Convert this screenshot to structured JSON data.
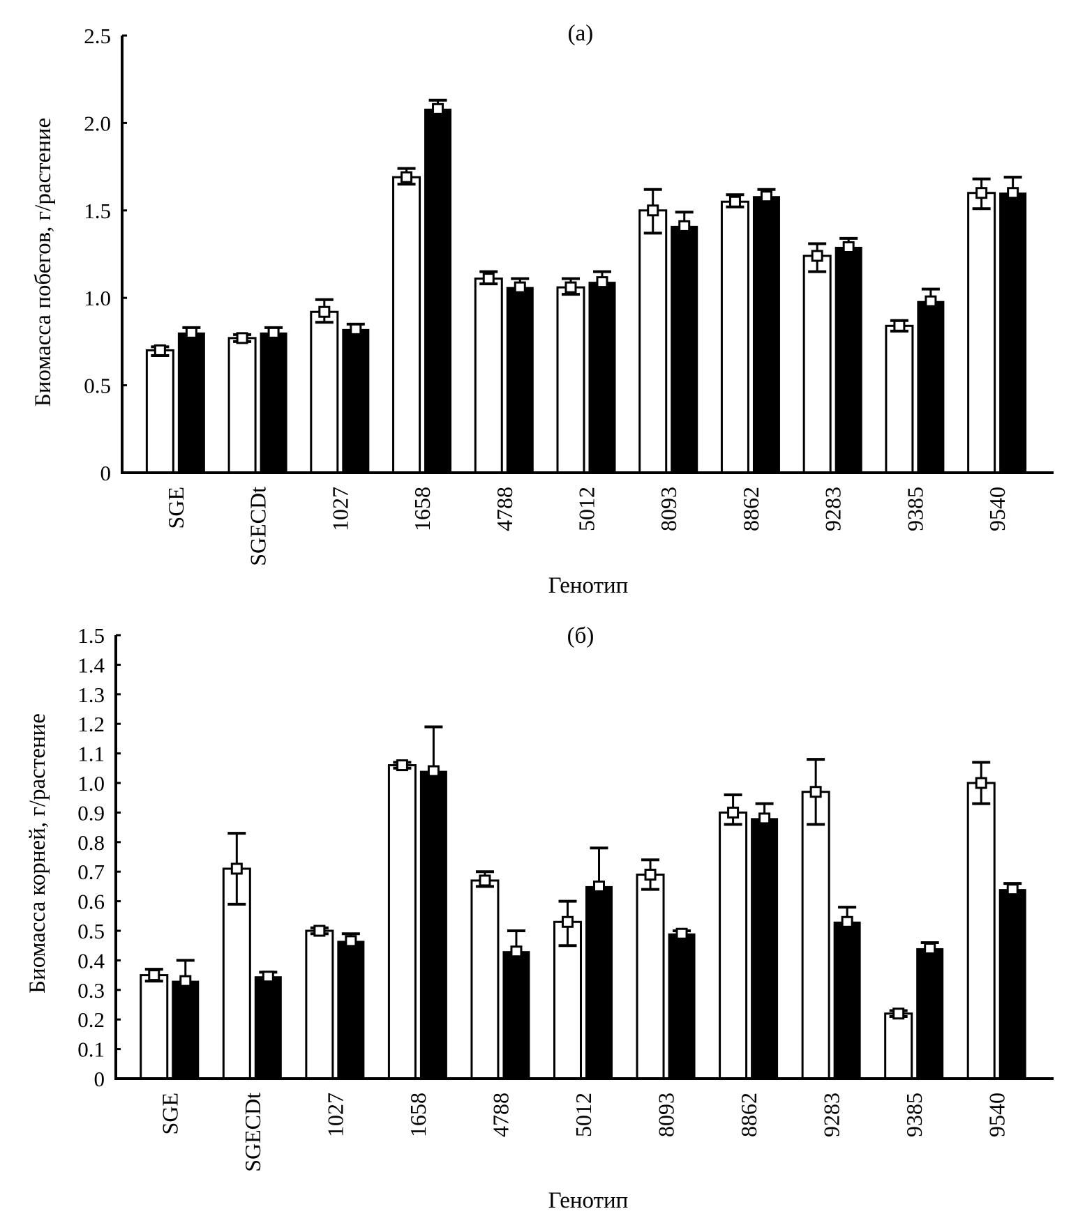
{
  "chart_data": [
    {
      "type": "bar",
      "panel_label": "(а)",
      "title": "",
      "xlabel": "Генотип",
      "ylabel": "Биомасса побегов, г/растение",
      "ylim": [
        0,
        2.5
      ],
      "yticks": [
        0,
        0.5,
        1.0,
        1.5,
        2.0,
        2.5
      ],
      "ytick_labels": [
        "0",
        "0.5",
        "1.0",
        "1.5",
        "2.0",
        "2.5"
      ],
      "grid": false,
      "legend": "none",
      "categories": [
        "SGE",
        "SGECDt",
        "1027",
        "1658",
        "4788",
        "5012",
        "8093",
        "8862",
        "9283",
        "9385",
        "9540"
      ],
      "series": [
        {
          "name": "white",
          "fill": "#ffffff",
          "values": [
            0.7,
            0.77,
            0.92,
            1.69,
            1.11,
            1.06,
            1.5,
            1.55,
            1.24,
            0.84,
            1.6
          ],
          "err_low": [
            0.67,
            0.75,
            0.86,
            1.65,
            1.08,
            1.02,
            1.37,
            1.52,
            1.15,
            0.81,
            1.51
          ],
          "err_high": [
            0.72,
            0.79,
            0.99,
            1.74,
            1.15,
            1.11,
            1.62,
            1.59,
            1.31,
            0.87,
            1.68
          ]
        },
        {
          "name": "black",
          "fill": "#000000",
          "values": [
            0.8,
            0.8,
            0.82,
            2.08,
            1.06,
            1.09,
            1.41,
            1.58,
            1.29,
            0.98,
            1.6
          ],
          "err_low": [
            0.77,
            0.77,
            0.8,
            2.05,
            1.03,
            1.05,
            1.35,
            1.55,
            1.26,
            0.93,
            1.56
          ],
          "err_high": [
            0.83,
            0.83,
            0.85,
            2.13,
            1.11,
            1.15,
            1.49,
            1.62,
            1.34,
            1.05,
            1.69
          ]
        }
      ]
    },
    {
      "type": "bar",
      "panel_label": "(б)",
      "title": "",
      "xlabel": "Генотип",
      "ylabel": "Биомасса корней, г/растение",
      "ylim": [
        0,
        1.5
      ],
      "yticks": [
        0,
        0.1,
        0.2,
        0.3,
        0.4,
        0.5,
        0.6,
        0.7,
        0.8,
        0.9,
        1.0,
        1.1,
        1.2,
        1.3,
        1.4,
        1.5
      ],
      "ytick_labels": [
        "0",
        "0.1",
        "0.2",
        "0.3",
        "0.4",
        "0.5",
        "0.6",
        "0.7",
        "0.8",
        "0.9",
        "1.0",
        "1.1",
        "1.2",
        "1.3",
        "1.4",
        "1.5"
      ],
      "grid": false,
      "legend": "none",
      "categories": [
        "SGE",
        "SGECDt",
        "1027",
        "1658",
        "4788",
        "5012",
        "8093",
        "8862",
        "9283",
        "9385",
        "9540"
      ],
      "series": [
        {
          "name": "white",
          "fill": "#ffffff",
          "values": [
            0.35,
            0.71,
            0.5,
            1.06,
            0.67,
            0.53,
            0.69,
            0.9,
            0.97,
            0.22,
            1.0
          ],
          "err_low": [
            0.33,
            0.59,
            0.49,
            1.05,
            0.65,
            0.45,
            0.64,
            0.86,
            0.86,
            0.21,
            0.93
          ],
          "err_high": [
            0.37,
            0.83,
            0.51,
            1.07,
            0.7,
            0.6,
            0.74,
            0.96,
            1.08,
            0.23,
            1.07
          ]
        },
        {
          "name": "black",
          "fill": "#000000",
          "values": [
            0.33,
            0.345,
            0.465,
            1.04,
            0.43,
            0.65,
            0.49,
            0.88,
            0.53,
            0.44,
            0.64
          ],
          "err_low": [
            0.27,
            0.33,
            0.45,
            0.89,
            0.4,
            0.52,
            0.48,
            0.84,
            0.5,
            0.42,
            0.63
          ],
          "err_high": [
            0.4,
            0.36,
            0.49,
            1.19,
            0.5,
            0.78,
            0.5,
            0.93,
            0.58,
            0.46,
            0.66
          ]
        }
      ]
    }
  ]
}
